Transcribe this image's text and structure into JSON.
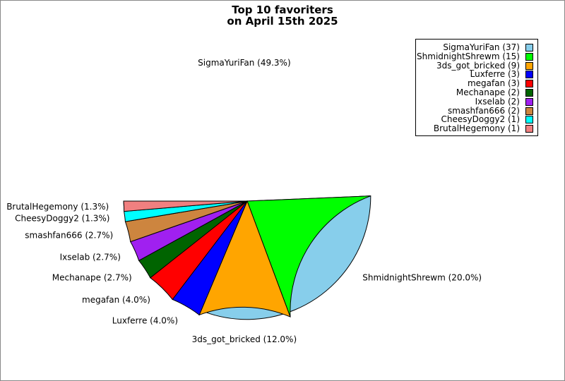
{
  "chart_data": {
    "type": "pie",
    "title": [
      "Top 10 favoriters",
      "on April 15th 2025"
    ],
    "slices": [
      {
        "label": "SigmaYuriFan",
        "value": 37,
        "percent_label": "SigmaYuriFan (49.3%)",
        "legend_label": "SigmaYuriFan (37)",
        "color": "#87ceeb"
      },
      {
        "label": "ShmidnightShrewm",
        "value": 15,
        "percent_label": "ShmidnightShrewm (20.0%)",
        "legend_label": "ShmidnightShrewm (15)",
        "color": "#00ff00"
      },
      {
        "label": "3ds_got_bricked",
        "value": 9,
        "percent_label": "3ds_got_bricked (12.0%)",
        "legend_label": "3ds_got_bricked (9)",
        "color": "#ffa500"
      },
      {
        "label": "Luxferre",
        "value": 3,
        "percent_label": "Luxferre (4.0%)",
        "legend_label": "Luxferre (3)",
        "color": "#0000ff"
      },
      {
        "label": "megafan",
        "value": 3,
        "percent_label": "megafan (4.0%)",
        "legend_label": "megafan (3)",
        "color": "#ff0000"
      },
      {
        "label": "Mechanape",
        "value": 2,
        "percent_label": "Mechanape (2.7%)",
        "legend_label": "Mechanape (2)",
        "color": "#006400"
      },
      {
        "label": "Ixselab",
        "value": 2,
        "percent_label": "Ixselab (2.7%)",
        "legend_label": "Ixselab (2)",
        "color": "#a020f0"
      },
      {
        "label": "smashfan666",
        "value": 2,
        "percent_label": "smashfan666 (2.7%)",
        "legend_label": "smashfan666 (2)",
        "color": "#cd853f"
      },
      {
        "label": "CheesyDoggy2",
        "value": 1,
        "percent_label": "CheesyDoggy2 (1.3%)",
        "legend_label": "CheesyDoggy2 (1)",
        "color": "#00ffff"
      },
      {
        "label": "BrutalHegemony",
        "value": 1,
        "percent_label": "BrutalHegemony (1.3%)",
        "legend_label": "BrutalHegemony (1)",
        "color": "#f08080"
      }
    ],
    "legend_position": "top-right"
  }
}
